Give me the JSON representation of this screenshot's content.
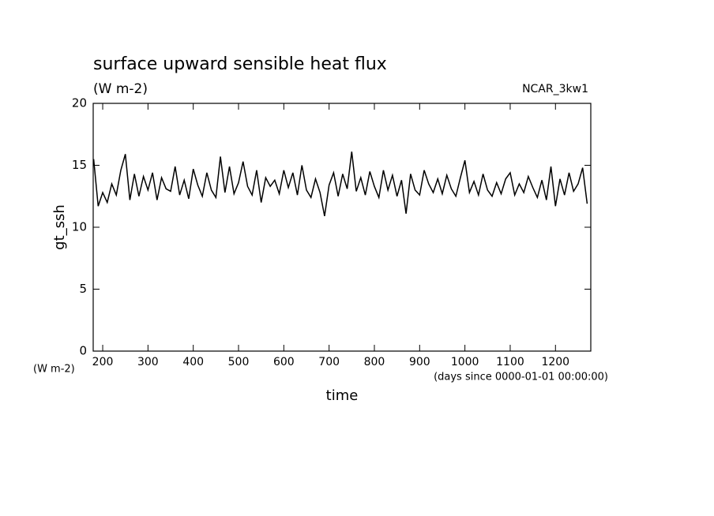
{
  "chart_data": {
    "type": "line",
    "title": "surface upward sensible heat flux",
    "subtitle": "(W m-2)",
    "source_label": "NCAR_3kw1",
    "ylabel": "gt_ssh",
    "xlabel": "time",
    "y_unit": "(W m-2)",
    "x_unit": "(days since 0000-01-01 00:00:00)",
    "xlim": [
      179,
      1278
    ],
    "ylim": [
      0,
      20
    ],
    "xticks": [
      200,
      300,
      400,
      500,
      600,
      700,
      800,
      900,
      1000,
      1100,
      1200
    ],
    "yticks": [
      0,
      5,
      10,
      15,
      20
    ],
    "x": [
      180,
      190,
      200,
      210,
      220,
      230,
      240,
      250,
      260,
      270,
      280,
      290,
      300,
      310,
      320,
      330,
      340,
      350,
      360,
      370,
      380,
      390,
      400,
      410,
      420,
      430,
      440,
      450,
      460,
      470,
      480,
      490,
      500,
      510,
      520,
      530,
      540,
      550,
      560,
      570,
      580,
      590,
      600,
      610,
      620,
      630,
      640,
      650,
      660,
      670,
      680,
      690,
      700,
      710,
      720,
      730,
      740,
      750,
      760,
      770,
      780,
      790,
      800,
      810,
      820,
      830,
      840,
      850,
      860,
      870,
      880,
      890,
      900,
      910,
      920,
      930,
      940,
      950,
      960,
      970,
      980,
      990,
      1000,
      1010,
      1020,
      1030,
      1040,
      1050,
      1060,
      1070,
      1080,
      1090,
      1100,
      1110,
      1120,
      1130,
      1140,
      1150,
      1160,
      1170,
      1180,
      1190,
      1200,
      1210,
      1220,
      1230,
      1240,
      1250,
      1260,
      1270
    ],
    "series": [
      {
        "name": "gt_ssh",
        "color": "#000000",
        "values": [
          15.5,
          11.7,
          12.8,
          12.0,
          13.5,
          12.6,
          14.6,
          15.9,
          12.2,
          14.3,
          12.5,
          14.1,
          13.0,
          14.4,
          12.2,
          14.0,
          13.1,
          12.9,
          14.9,
          12.6,
          13.8,
          12.3,
          14.7,
          13.4,
          12.5,
          14.4,
          13.0,
          12.4,
          15.7,
          12.8,
          14.9,
          12.7,
          13.6,
          15.3,
          13.3,
          12.6,
          14.6,
          12.0,
          14.0,
          13.3,
          13.8,
          12.7,
          14.6,
          13.2,
          14.4,
          12.6,
          15.0,
          13.0,
          12.4,
          13.9,
          12.8,
          10.9,
          13.4,
          14.4,
          12.5,
          14.3,
          13.1,
          16.1,
          12.9,
          14.0,
          12.6,
          14.5,
          13.3,
          12.4,
          14.6,
          13.0,
          14.2,
          12.5,
          13.8,
          11.1,
          14.3,
          13.0,
          12.6,
          14.6,
          13.5,
          12.8,
          13.9,
          12.7,
          14.2,
          13.1,
          12.5,
          14.0,
          15.4,
          12.8,
          13.7,
          12.6,
          14.3,
          13.0,
          12.5,
          13.6,
          12.7,
          13.9,
          14.4,
          12.6,
          13.5,
          12.8,
          14.1,
          13.2,
          12.4,
          13.8,
          12.2,
          14.9,
          11.7,
          13.9,
          12.6,
          14.4,
          12.9,
          13.5,
          14.8,
          11.9
        ]
      }
    ]
  }
}
